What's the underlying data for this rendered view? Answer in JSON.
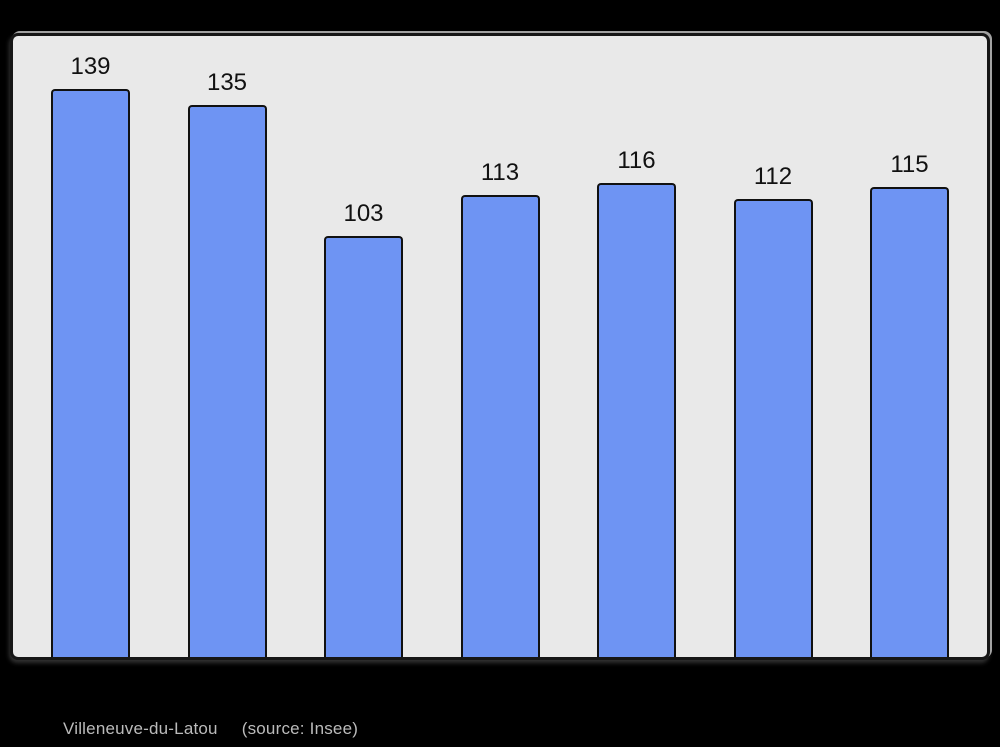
{
  "page": {
    "background": "#000000"
  },
  "chart_data": {
    "type": "bar",
    "values": [
      139,
      135,
      103,
      113,
      116,
      112,
      115
    ],
    "title": "",
    "xlabel": "",
    "ylabel": "",
    "ylim": [
      0,
      152
    ],
    "grid": false,
    "legend": false,
    "value_labels_shown": true,
    "bar_color": "#6e94f3",
    "bar_border_color": "#111111",
    "plot_background": "#e9e9e9",
    "value_label_color": "#111111"
  },
  "caption": {
    "place": "Villeneuve-du-Latou",
    "source": "(source: Insee)",
    "color": "#bbbbbb"
  }
}
